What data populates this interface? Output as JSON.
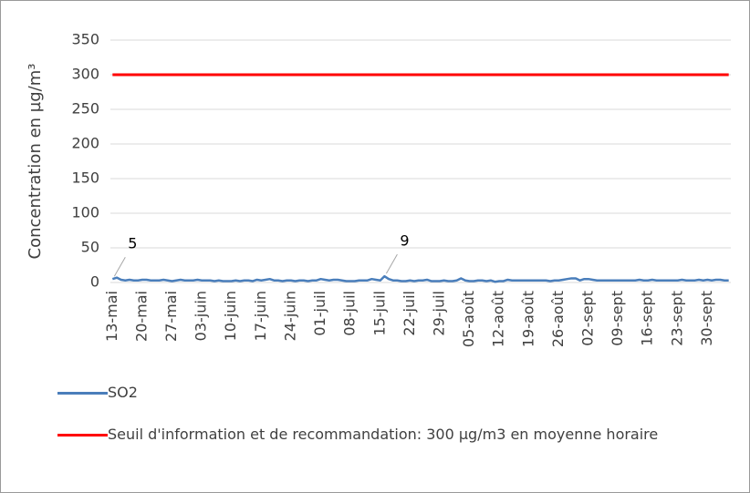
{
  "chart_data": {
    "type": "line",
    "y_label": "Concentration en µg/m³",
    "categories": [
      "13-mai",
      null,
      null,
      null,
      null,
      null,
      null,
      "20-mai",
      null,
      null,
      null,
      null,
      null,
      null,
      "27-mai",
      null,
      null,
      null,
      null,
      null,
      null,
      "03-juin",
      null,
      null,
      null,
      null,
      null,
      null,
      "10-juin",
      null,
      null,
      null,
      null,
      null,
      null,
      "17-juin",
      null,
      null,
      null,
      null,
      null,
      null,
      "24-juin",
      null,
      null,
      null,
      null,
      null,
      null,
      "01-juil",
      null,
      null,
      null,
      null,
      null,
      null,
      "08-juil",
      null,
      null,
      null,
      null,
      null,
      null,
      "15-juil",
      null,
      null,
      null,
      null,
      null,
      null,
      "22-juil",
      null,
      null,
      null,
      null,
      null,
      null,
      "29-juil",
      null,
      null,
      null,
      null,
      null,
      null,
      "05-août",
      null,
      null,
      null,
      null,
      null,
      null,
      "12-août",
      null,
      null,
      null,
      null,
      null,
      null,
      "19-août",
      null,
      null,
      null,
      null,
      null,
      null,
      "26-août",
      null,
      null,
      null,
      null,
      null,
      null,
      "02-sept",
      null,
      null,
      null,
      null,
      null,
      null,
      "09-sept",
      null,
      null,
      null,
      null,
      null,
      null,
      "16-sept",
      null,
      null,
      null,
      null,
      null,
      null,
      "23-sept",
      null,
      null,
      null,
      null,
      null,
      null,
      "30-sept",
      null,
      null,
      null,
      null,
      null
    ],
    "series": [
      {
        "name": "SO2",
        "color": "#4a7ebb",
        "data_labels": [
          0,
          64
        ],
        "values": [
          5,
          7,
          4,
          3,
          4,
          3,
          3,
          4,
          4,
          3,
          3,
          3,
          4,
          3,
          2,
          3,
          4,
          3,
          3,
          3,
          4,
          3,
          3,
          3,
          2,
          3,
          2,
          2,
          2,
          3,
          2,
          3,
          3,
          2,
          4,
          3,
          4,
          5,
          3,
          3,
          2,
          3,
          3,
          2,
          3,
          3,
          2,
          3,
          3,
          5,
          4,
          3,
          4,
          4,
          3,
          2,
          2,
          2,
          3,
          3,
          3,
          5,
          4,
          3,
          9,
          5,
          3,
          3,
          2,
          2,
          3,
          2,
          3,
          3,
          4,
          2,
          2,
          2,
          3,
          2,
          2,
          3,
          6,
          3,
          2,
          2,
          3,
          3,
          2,
          3,
          1,
          2,
          2,
          4,
          3,
          3,
          3,
          3,
          3,
          3,
          3,
          3,
          3,
          2,
          3,
          3,
          4,
          5,
          6,
          6,
          3,
          5,
          5,
          4,
          3,
          3,
          3,
          3,
          3,
          3,
          3,
          3,
          3,
          3,
          4,
          3,
          3,
          4,
          3,
          3,
          3,
          3,
          3,
          3,
          4,
          3,
          3,
          3,
          4,
          3,
          4,
          3,
          4,
          4,
          3,
          3
        ]
      },
      {
        "name": "Seuil d'information et de recommandation: 300 µg/m3 en moyenne horaire",
        "color": "#ff0000",
        "values": [
          300,
          300,
          300,
          300,
          300,
          300,
          300,
          300,
          300,
          300,
          300,
          300,
          300,
          300,
          300,
          300,
          300,
          300,
          300,
          300,
          300,
          300,
          300,
          300,
          300,
          300,
          300,
          300,
          300,
          300,
          300,
          300,
          300,
          300,
          300,
          300,
          300,
          300,
          300,
          300,
          300,
          300,
          300,
          300,
          300,
          300,
          300,
          300,
          300,
          300,
          300,
          300,
          300,
          300,
          300,
          300,
          300,
          300,
          300,
          300,
          300,
          300,
          300,
          300,
          300,
          300,
          300,
          300,
          300,
          300,
          300,
          300,
          300,
          300,
          300,
          300,
          300,
          300,
          300,
          300,
          300,
          300,
          300,
          300,
          300,
          300,
          300,
          300,
          300,
          300,
          300,
          300,
          300,
          300,
          300,
          300,
          300,
          300,
          300,
          300,
          300,
          300,
          300,
          300,
          300,
          300,
          300,
          300,
          300,
          300,
          300,
          300,
          300,
          300,
          300,
          300,
          300,
          300,
          300,
          300,
          300,
          300,
          300,
          300,
          300,
          300,
          300,
          300,
          300,
          300,
          300,
          300,
          300,
          300,
          300,
          300,
          300,
          300,
          300,
          300,
          300,
          300,
          300,
          300,
          300,
          300
        ]
      }
    ],
    "ylim": [
      0,
      350
    ],
    "yticks": [
      0,
      50,
      100,
      150,
      200,
      250,
      300,
      350
    ],
    "grid": true,
    "legend": "bottom"
  }
}
